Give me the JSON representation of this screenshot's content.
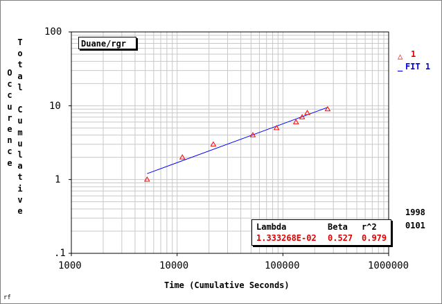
{
  "chart_data": {
    "type": "scatter",
    "title_box": "Duane/rgr",
    "xlabel": "Time (Cumulative Seconds)",
    "ylabel_left": "Occurence",
    "ylabel_right": "Total Cumulative",
    "x_scale": "log",
    "y_scale": "log",
    "xlim": [
      1000,
      1000000
    ],
    "ylim": [
      0.1,
      100
    ],
    "x_ticks": [
      "1000",
      "10000",
      "100000",
      "1000000"
    ],
    "y_ticks": [
      "100",
      "10",
      "1",
      ".1"
    ],
    "grid": true,
    "series": [
      {
        "name": "1",
        "kind": "points",
        "marker": "triangle",
        "color": "#ff0000",
        "points": [
          {
            "x": 5200,
            "y": 1
          },
          {
            "x": 11200,
            "y": 2
          },
          {
            "x": 22000,
            "y": 3
          },
          {
            "x": 52000,
            "y": 4
          },
          {
            "x": 87000,
            "y": 5
          },
          {
            "x": 133000,
            "y": 6
          },
          {
            "x": 152000,
            "y": 7
          },
          {
            "x": 170000,
            "y": 8
          },
          {
            "x": 265000,
            "y": 9
          }
        ]
      },
      {
        "name": "FIT 1",
        "kind": "line",
        "color": "#0000ff",
        "points": [
          {
            "x": 5200,
            "y": 1.2
          },
          {
            "x": 265000,
            "y": 9.5
          }
        ]
      }
    ],
    "legend": {
      "placement": "right",
      "items": [
        "1",
        "FIT 1"
      ],
      "prefix_1": "△",
      "prefix_2": "_"
    },
    "stats": {
      "headers": [
        "Lambda",
        "Beta",
        "r^2"
      ],
      "values": [
        "1.333268E-02",
        "0.527",
        "0.979"
      ]
    },
    "side_date": [
      "1998",
      "0101"
    ],
    "corner_text": "rf"
  }
}
